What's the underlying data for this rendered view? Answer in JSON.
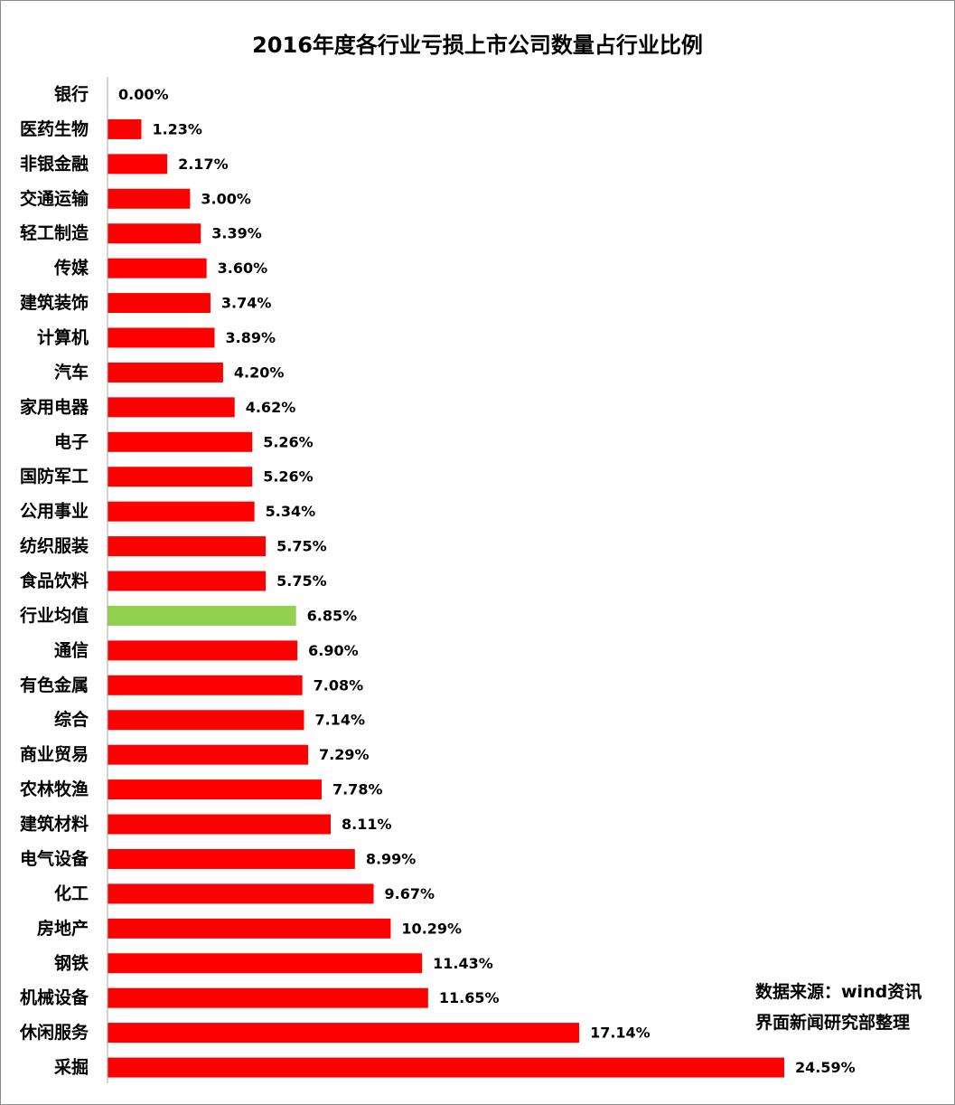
{
  "chart_data": {
    "type": "bar",
    "orientation": "horizontal",
    "title": "2016年度各行业亏损上市公司数量占行业比例",
    "categories": [
      "银行",
      "医药生物",
      "非银金融",
      "交通运输",
      "轻工制造",
      "传媒",
      "建筑装饰",
      "计算机",
      "汽车",
      "家用电器",
      "电子",
      "国防军工",
      "公用事业",
      "纺织服装",
      "食品饮料",
      "行业均值",
      "通信",
      "有色金属",
      "综合",
      "商业贸易",
      "农林牧渔",
      "建筑材料",
      "电气设备",
      "化工",
      "房地产",
      "钢铁",
      "机械设备",
      "休闲服务",
      "采掘"
    ],
    "values": [
      0.0,
      1.23,
      2.17,
      3.0,
      3.39,
      3.6,
      3.74,
      3.89,
      4.2,
      4.62,
      5.26,
      5.26,
      5.34,
      5.75,
      5.75,
      6.85,
      6.9,
      7.08,
      7.14,
      7.29,
      7.78,
      8.11,
      8.99,
      9.67,
      10.29,
      11.43,
      11.65,
      17.14,
      24.59
    ],
    "value_labels": [
      "0.00%",
      "1.23%",
      "2.17%",
      "3.00%",
      "3.39%",
      "3.60%",
      "3.74%",
      "3.89%",
      "4.20%",
      "4.62%",
      "5.26%",
      "5.26%",
      "5.34%",
      "5.75%",
      "5.75%",
      "6.85%",
      "6.90%",
      "7.08%",
      "7.14%",
      "7.29%",
      "7.78%",
      "8.11%",
      "8.99%",
      "9.67%",
      "10.29%",
      "11.43%",
      "11.65%",
      "17.14%",
      "24.59%"
    ],
    "highlight_category": "行业均值",
    "unit": "%",
    "xlim": [
      0,
      25
    ],
    "grid": false,
    "legend": "none",
    "colors": {
      "bar": "#ff0000",
      "highlight": "#92d050",
      "axis": "#a6a6a6"
    }
  },
  "source_note": {
    "line1": "数据来源：wind资讯",
    "line2": "界面新闻研究部整理"
  }
}
